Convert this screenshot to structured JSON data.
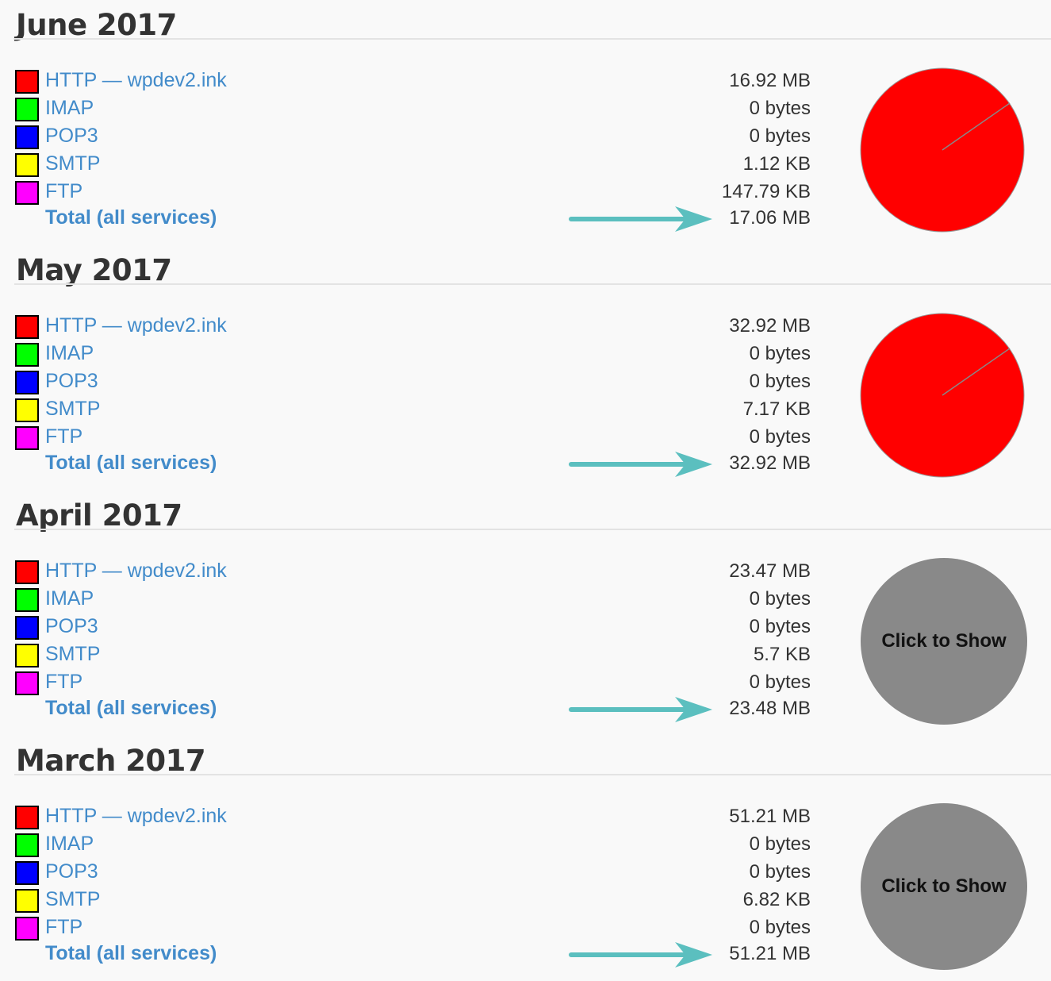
{
  "colors": {
    "HTTP": "#ff0000",
    "IMAP": "#00ff00",
    "POP3": "#0000ff",
    "SMTP": "#ffff00",
    "FTP": "#ff00ff",
    "link": "#428bca",
    "arrow": "#5bbfbf",
    "hidden_pie": "#898989"
  },
  "months": [
    {
      "title": "June 2017",
      "show_chart": true,
      "rows": [
        {
          "service": "HTTP",
          "label": "HTTP — wpdev2.ink",
          "value": "16.92 MB"
        },
        {
          "service": "IMAP",
          "label": "IMAP",
          "value": "0 bytes"
        },
        {
          "service": "POP3",
          "label": "POP3",
          "value": "0 bytes"
        },
        {
          "service": "SMTP",
          "label": "SMTP",
          "value": "1.12 KB"
        },
        {
          "service": "FTP",
          "label": "FTP",
          "value": "147.79 KB"
        }
      ],
      "total_label": "Total (all services)",
      "total": "17.06 MB"
    },
    {
      "title": "May 2017",
      "show_chart": true,
      "rows": [
        {
          "service": "HTTP",
          "label": "HTTP — wpdev2.ink",
          "value": "32.92 MB"
        },
        {
          "service": "IMAP",
          "label": "IMAP",
          "value": "0 bytes"
        },
        {
          "service": "POP3",
          "label": "POP3",
          "value": "0 bytes"
        },
        {
          "service": "SMTP",
          "label": "SMTP",
          "value": "7.17 KB"
        },
        {
          "service": "FTP",
          "label": "FTP",
          "value": "0 bytes"
        }
      ],
      "total_label": "Total (all services)",
      "total": "32.92 MB"
    },
    {
      "title": "April 2017",
      "show_chart": false,
      "chart_button": "Click to Show",
      "rows": [
        {
          "service": "HTTP",
          "label": "HTTP — wpdev2.ink",
          "value": "23.47 MB"
        },
        {
          "service": "IMAP",
          "label": "IMAP",
          "value": "0 bytes"
        },
        {
          "service": "POP3",
          "label": "POP3",
          "value": "0 bytes"
        },
        {
          "service": "SMTP",
          "label": "SMTP",
          "value": "5.7 KB"
        },
        {
          "service": "FTP",
          "label": "FTP",
          "value": "0 bytes"
        }
      ],
      "total_label": "Total (all services)",
      "total": "23.48 MB"
    },
    {
      "title": "March 2017",
      "show_chart": false,
      "chart_button": "Click to Show",
      "rows": [
        {
          "service": "HTTP",
          "label": "HTTP — wpdev2.ink",
          "value": "51.21 MB"
        },
        {
          "service": "IMAP",
          "label": "IMAP",
          "value": "0 bytes"
        },
        {
          "service": "POP3",
          "label": "POP3",
          "value": "0 bytes"
        },
        {
          "service": "SMTP",
          "label": "SMTP",
          "value": "6.82 KB"
        },
        {
          "service": "FTP",
          "label": "FTP",
          "value": "0 bytes"
        }
      ],
      "total_label": "Total (all services)",
      "total": "51.21 MB"
    }
  ]
}
